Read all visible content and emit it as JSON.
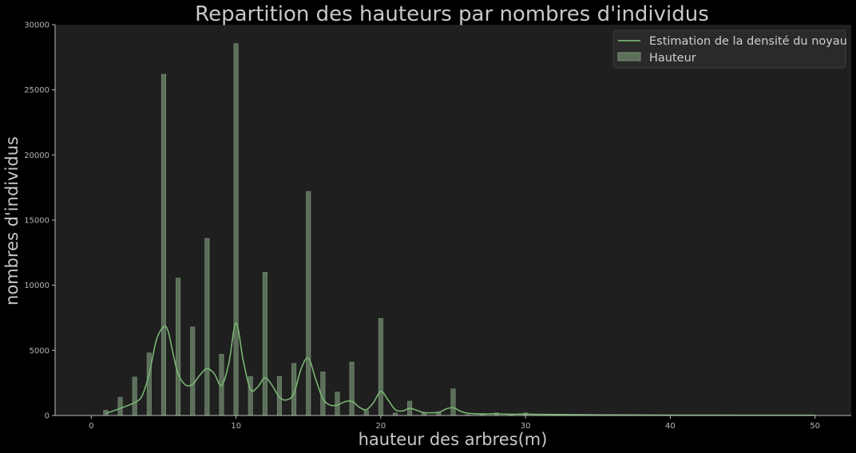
{
  "chart_data": {
    "type": "bar",
    "title": "Repartition des hauteurs par nombres d'individus",
    "xlabel": "hauteur des arbres(m)",
    "ylabel": "nombres d'individus",
    "xlim": [
      -2.5,
      52.5
    ],
    "ylim": [
      0,
      30000
    ],
    "xticks": [
      0,
      10,
      20,
      30,
      40,
      50
    ],
    "yticks": [
      0,
      5000,
      10000,
      15000,
      20000,
      25000,
      30000
    ],
    "grid": false,
    "legend_position": "top-right",
    "colors": {
      "background": "#000000",
      "plot_area": "#1f1f1f",
      "bar_fill": "#5b6f59",
      "bar_edge": "#7c9379",
      "kde_line": "#79b473",
      "text": "#c8c8c8"
    },
    "series": [
      {
        "name": "Hauteur",
        "kind": "histogram",
        "x": [
          1,
          2,
          3,
          4,
          5,
          6,
          7,
          8,
          9,
          10,
          11,
          12,
          13,
          14,
          15,
          16,
          17,
          18,
          19,
          20,
          21,
          22,
          23,
          24,
          25,
          26,
          27,
          28,
          29,
          30
        ],
        "values": [
          400,
          1400,
          2950,
          4800,
          26200,
          10550,
          6800,
          13600,
          4700,
          28550,
          3000,
          11000,
          3000,
          4000,
          17200,
          3350,
          1800,
          4100,
          400,
          7450,
          200,
          1100,
          200,
          200,
          2050,
          50,
          150,
          200,
          50,
          200
        ]
      },
      {
        "name": "Estimation de la densité du noyau",
        "kind": "kde",
        "x": [
          1,
          2,
          3,
          3.5,
          4,
          4.5,
          5,
          5.3,
          5.7,
          6,
          6.5,
          7,
          7.5,
          8,
          8.5,
          9,
          9.5,
          10,
          10.5,
          11,
          11.5,
          12,
          12.5,
          13,
          13.5,
          14,
          14.5,
          15,
          15.5,
          16,
          16.5,
          17,
          17.5,
          18,
          18.5,
          19,
          19.5,
          20,
          20.5,
          21,
          21.5,
          22,
          22.5,
          23,
          24,
          24.5,
          25,
          25.5,
          26,
          27,
          28,
          29,
          30,
          31,
          35,
          40,
          45,
          50
        ],
        "values": [
          150,
          550,
          1000,
          1500,
          3200,
          5800,
          6800,
          6500,
          4500,
          3200,
          2350,
          2400,
          3100,
          3600,
          3200,
          2300,
          4000,
          7100,
          4200,
          2000,
          2200,
          2900,
          2300,
          1400,
          1200,
          1700,
          3600,
          4400,
          2800,
          1300,
          800,
          800,
          1050,
          1100,
          650,
          450,
          1000,
          1850,
          1200,
          450,
          350,
          550,
          400,
          220,
          250,
          500,
          600,
          330,
          170,
          120,
          130,
          100,
          110,
          90,
          50,
          30,
          20,
          20
        ]
      }
    ]
  }
}
